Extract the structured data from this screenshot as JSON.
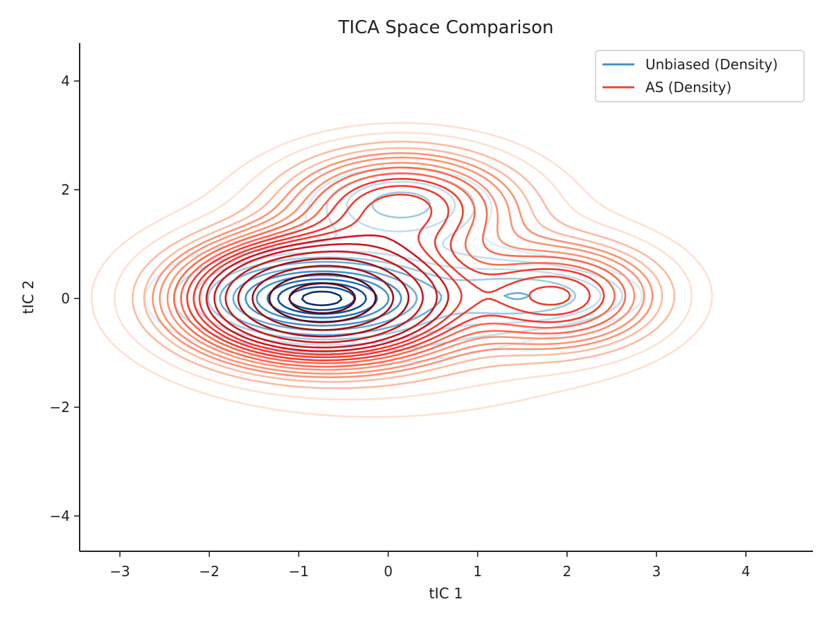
{
  "chart_data": {
    "type": "contour",
    "title": "TICA Space Comparison",
    "xlabel": "tIC 1",
    "ylabel": "tIC 2",
    "xlim": [
      -3.45,
      4.75
    ],
    "ylim": [
      -4.65,
      4.7
    ],
    "xticks": [
      -3,
      -2,
      -1,
      0,
      1,
      2,
      3,
      4
    ],
    "yticks": [
      -4,
      -2,
      0,
      2,
      4
    ],
    "xtick_labels": [
      "−3",
      "−2",
      "−1",
      "0",
      "1",
      "2",
      "3",
      "4"
    ],
    "ytick_labels": [
      "−4",
      "−2",
      "0",
      "2",
      "4"
    ],
    "grid": false,
    "legend_position": "top-right",
    "series": [
      {
        "name": "Unbiased (Density)",
        "legend_color": "#4292c6",
        "colormap": [
          "#deebf7",
          "#c6dbef",
          "#9ecae1",
          "#6baed6",
          "#4292c6",
          "#2171b5",
          "#08519c",
          "#08306b"
        ],
        "components": [
          {
            "cx": -0.75,
            "cy": 0.0,
            "sx": 0.55,
            "sy": 0.32,
            "w": 1.0
          },
          {
            "cx": 0.15,
            "cy": 1.75,
            "sx": 0.55,
            "sy": 0.38,
            "w": 0.15
          },
          {
            "cx": 1.6,
            "cy": 0.05,
            "sx": 0.65,
            "sy": 0.32,
            "w": 0.14
          },
          {
            "cx": -0.35,
            "cy": 0.0,
            "sx": 1.45,
            "sy": 0.75,
            "w": 0.12
          }
        ],
        "levels": [
          0.03,
          0.05,
          0.08,
          0.12,
          0.17,
          0.25,
          0.35,
          0.46,
          0.58,
          0.7,
          0.82,
          0.93
        ]
      },
      {
        "name": "AS (Density)",
        "legend_color": "#e34a33",
        "colormap": [
          "#fee0d2",
          "#fcbba1",
          "#fc9272",
          "#fb6a4a",
          "#ef3b2c",
          "#cb181d",
          "#a50f15",
          "#67000d"
        ],
        "components": [
          {
            "cx": -0.75,
            "cy": 0.0,
            "sx": 0.78,
            "sy": 0.58,
            "w": 1.0
          },
          {
            "cx": 0.15,
            "cy": 1.7,
            "sx": 0.75,
            "sy": 0.6,
            "w": 0.24
          },
          {
            "cx": 1.9,
            "cy": 0.05,
            "sx": 0.65,
            "sy": 0.55,
            "w": 0.22
          },
          {
            "cx": 0.0,
            "cy": 0.0,
            "sx": 1.55,
            "sy": 1.15,
            "w": 0.06
          }
        ],
        "levels": [
          0.01,
          0.02,
          0.035,
          0.05,
          0.065,
          0.08,
          0.1,
          0.12,
          0.145,
          0.17,
          0.2,
          0.23,
          0.27,
          0.32,
          0.4,
          0.5,
          0.62,
          0.76,
          0.9
        ]
      }
    ]
  }
}
